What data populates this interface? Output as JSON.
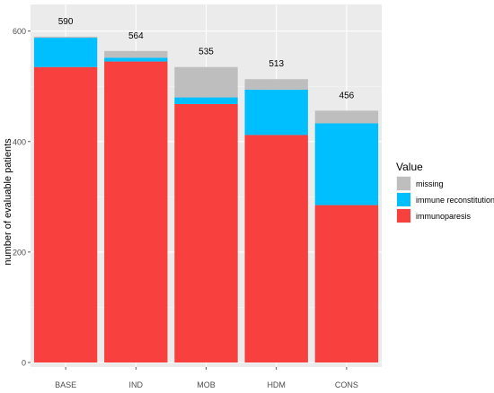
{
  "chart_data": {
    "type": "bar",
    "stacked": true,
    "categories": [
      "BASE",
      "IND",
      "MOB",
      "HDM",
      "CONS"
    ],
    "totals": [
      590,
      564,
      535,
      513,
      456
    ],
    "series": [
      {
        "name": "immunoparesis",
        "color": "#F8403F",
        "values": [
          535,
          545,
          468,
          412,
          285
        ]
      },
      {
        "name": "immune reconstitution",
        "color": "#00BFFF",
        "values": [
          53,
          7,
          12,
          82,
          148
        ]
      },
      {
        "name": "missing",
        "color": "#BEBEBE",
        "values": [
          2,
          12,
          55,
          19,
          23
        ]
      }
    ],
    "xlabel": "",
    "ylabel": "number of evaluable patients",
    "ylim": [
      0,
      650
    ],
    "yticks": [
      0,
      200,
      400,
      600
    ],
    "grid": true,
    "legend": {
      "title": "Value",
      "placement": "right",
      "entries": [
        "missing",
        "immune reconstitution",
        "immunoparesis"
      ]
    }
  }
}
